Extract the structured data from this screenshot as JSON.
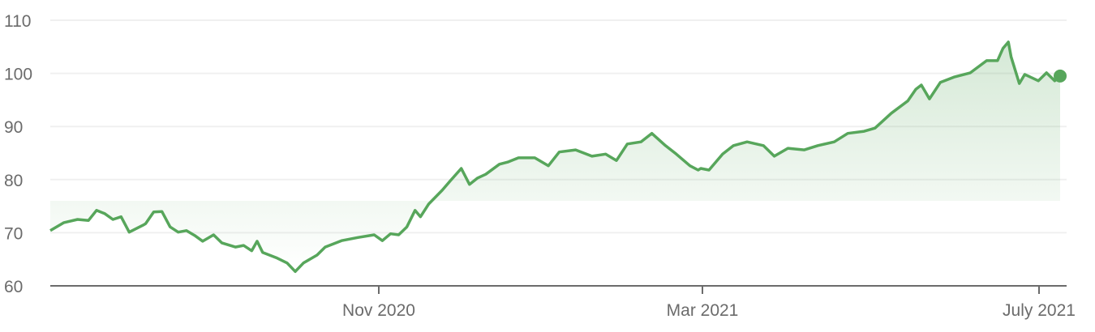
{
  "chart_data": {
    "type": "area",
    "title": "",
    "xlabel": "",
    "ylabel": "",
    "ylim": [
      60,
      110
    ],
    "xlim": [
      "2020-07-01",
      "2021-07-07"
    ],
    "yticks": [
      "60",
      "70",
      "80",
      "90",
      "100",
      "110"
    ],
    "xticks": [
      {
        "date": "2020-11-01",
        "label": "Nov 2020"
      },
      {
        "date": "2021-03-01",
        "label": "Mar 2021"
      },
      {
        "date": "2021-07-01",
        "label": "July 2021"
      }
    ],
    "grid": true,
    "colors": {
      "line": "#57a65b",
      "fill": "#57a65b",
      "axis": "#6b6b6b",
      "grid": "#f0f0f0"
    },
    "end_marker": true,
    "points": [
      [
        "2020-07-01",
        70.4
      ],
      [
        "2020-07-06",
        71.9
      ],
      [
        "2020-07-11",
        72.5
      ],
      [
        "2020-07-15",
        72.3
      ],
      [
        "2020-07-18",
        74.2
      ],
      [
        "2020-07-21",
        73.6
      ],
      [
        "2020-07-24",
        72.5
      ],
      [
        "2020-07-27",
        73.0
      ],
      [
        "2020-07-30",
        70.1
      ],
      [
        "2020-08-04",
        71.4
      ],
      [
        "2020-08-05",
        71.7
      ],
      [
        "2020-08-08",
        73.9
      ],
      [
        "2020-08-11",
        74.0
      ],
      [
        "2020-08-14",
        71.1
      ],
      [
        "2020-08-17",
        70.1
      ],
      [
        "2020-08-20",
        70.4
      ],
      [
        "2020-08-23",
        69.5
      ],
      [
        "2020-08-26",
        68.4
      ],
      [
        "2020-08-30",
        69.6
      ],
      [
        "2020-09-02",
        68.1
      ],
      [
        "2020-09-07",
        67.3
      ],
      [
        "2020-09-10",
        67.6
      ],
      [
        "2020-09-13",
        66.6
      ],
      [
        "2020-09-15",
        68.4
      ],
      [
        "2020-09-17",
        66.3
      ],
      [
        "2020-09-22",
        65.3
      ],
      [
        "2020-09-26",
        64.3
      ],
      [
        "2020-09-29",
        62.7
      ],
      [
        "2020-10-02",
        64.3
      ],
      [
        "2020-10-07",
        65.8
      ],
      [
        "2020-10-10",
        67.3
      ],
      [
        "2020-10-16",
        68.5
      ],
      [
        "2020-10-22",
        69.1
      ],
      [
        "2020-10-28",
        69.6
      ],
      [
        "2020-10-31",
        68.5
      ],
      [
        "2020-11-03",
        69.8
      ],
      [
        "2020-11-06",
        69.6
      ],
      [
        "2020-11-09",
        71.1
      ],
      [
        "2020-11-12",
        74.2
      ],
      [
        "2020-11-14",
        73.0
      ],
      [
        "2020-11-17",
        75.4
      ],
      [
        "2020-11-22",
        78.0
      ],
      [
        "2020-11-25",
        79.8
      ],
      [
        "2020-11-29",
        82.1
      ],
      [
        "2020-12-02",
        79.1
      ],
      [
        "2020-12-05",
        80.3
      ],
      [
        "2020-12-08",
        81.0
      ],
      [
        "2020-12-13",
        82.9
      ],
      [
        "2020-12-16",
        83.3
      ],
      [
        "2020-12-20",
        84.1
      ],
      [
        "2020-12-26",
        84.1
      ],
      [
        "2020-12-31",
        82.6
      ],
      [
        "2021-01-04",
        85.2
      ],
      [
        "2021-01-10",
        85.6
      ],
      [
        "2021-01-16",
        84.4
      ],
      [
        "2021-01-21",
        84.8
      ],
      [
        "2021-01-25",
        83.6
      ],
      [
        "2021-01-29",
        86.7
      ],
      [
        "2021-02-03",
        87.1
      ],
      [
        "2021-02-07",
        88.7
      ],
      [
        "2021-02-12",
        86.4
      ],
      [
        "2021-02-16",
        84.8
      ],
      [
        "2021-02-21",
        82.6
      ],
      [
        "2021-02-24",
        81.8
      ],
      [
        "2021-02-25",
        82.1
      ],
      [
        "2021-02-28",
        81.8
      ],
      [
        "2021-03-05",
        84.8
      ],
      [
        "2021-03-09",
        86.4
      ],
      [
        "2021-03-14",
        87.1
      ],
      [
        "2021-03-20",
        86.4
      ],
      [
        "2021-03-24",
        84.4
      ],
      [
        "2021-03-29",
        85.9
      ],
      [
        "2021-04-04",
        85.6
      ],
      [
        "2021-04-09",
        86.4
      ],
      [
        "2021-04-15",
        87.1
      ],
      [
        "2021-04-20",
        88.7
      ],
      [
        "2021-04-26",
        89.1
      ],
      [
        "2021-04-30",
        89.7
      ],
      [
        "2021-05-06",
        92.5
      ],
      [
        "2021-05-12",
        94.8
      ],
      [
        "2021-05-15",
        97.0
      ],
      [
        "2021-05-17",
        97.8
      ],
      [
        "2021-05-20",
        95.2
      ],
      [
        "2021-05-24",
        98.3
      ],
      [
        "2021-05-29",
        99.3
      ],
      [
        "2021-06-04",
        100.1
      ],
      [
        "2021-06-10",
        102.4
      ],
      [
        "2021-06-14",
        102.4
      ],
      [
        "2021-06-16",
        104.7
      ],
      [
        "2021-06-18",
        105.9
      ],
      [
        "2021-06-19",
        103.1
      ],
      [
        "2021-06-22",
        98.1
      ],
      [
        "2021-06-24",
        99.8
      ],
      [
        "2021-06-29",
        98.6
      ],
      [
        "2021-07-02",
        100.1
      ],
      [
        "2021-07-05",
        98.6
      ],
      [
        "2021-07-07",
        99.5
      ]
    ]
  }
}
